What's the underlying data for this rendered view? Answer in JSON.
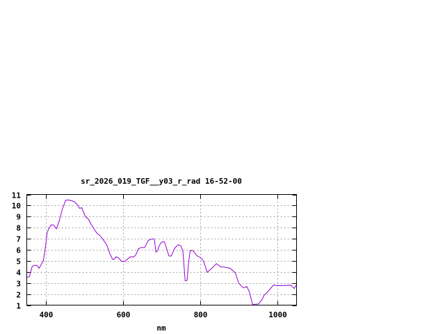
{
  "chart_data": {
    "type": "line",
    "title": "sr_2026_019_TGF__y03_r_rad 16-52-00",
    "xlabel": "nm",
    "ylabel": "",
    "xlim": [
      350,
      1050
    ],
    "ylim": [
      1,
      11
    ],
    "xticks": [
      400,
      600,
      800,
      1000
    ],
    "yticks": [
      1,
      2,
      3,
      4,
      5,
      6,
      7,
      8,
      9,
      10,
      11
    ],
    "grid": true,
    "series": [
      {
        "color": "#9400d3",
        "x": [
          350,
          357,
          364,
          370,
          376,
          382,
          387,
          393,
          397,
          403,
          407,
          413,
          419,
          427,
          435,
          442,
          451,
          460,
          469,
          475,
          481,
          487,
          493,
          496,
          502,
          510,
          517,
          526,
          532,
          541,
          550,
          558,
          565,
          572,
          576,
          582,
          588,
          596,
          605,
          614,
          620,
          626,
          632,
          640,
          647,
          656,
          665,
          671,
          677,
          681,
          685,
          689,
          694,
          700,
          707,
          713,
          719,
          725,
          734,
          743,
          750,
          755,
          761,
          766,
          770,
          774,
          782,
          791,
          803,
          809,
          818,
          830,
          842,
          854,
          863,
          878,
          891,
          900,
          912,
          921,
          927,
          936,
          951,
          960,
          966,
          975,
          990,
          999,
          1020,
          1035,
          1044,
          1049
        ],
        "y": [
          3.5,
          3.6,
          4.5,
          4.6,
          4.6,
          4.33,
          4.65,
          5.0,
          5.9,
          7.56,
          7.9,
          8.25,
          8.25,
          7.9,
          8.7,
          9.65,
          10.5,
          10.5,
          10.4,
          10.3,
          10.1,
          9.75,
          9.8,
          9.5,
          9.0,
          8.77,
          8.3,
          7.8,
          7.5,
          7.25,
          6.83,
          6.4,
          5.7,
          5.17,
          5.12,
          5.38,
          5.27,
          4.96,
          4.96,
          5.23,
          5.38,
          5.35,
          5.48,
          6.1,
          6.2,
          6.2,
          6.83,
          6.94,
          7.0,
          6.94,
          5.8,
          5.9,
          6.4,
          6.7,
          6.73,
          6.1,
          5.44,
          5.44,
          6.15,
          6.46,
          6.35,
          5.9,
          3.2,
          3.23,
          4.85,
          5.94,
          5.9,
          5.48,
          5.23,
          4.96,
          3.96,
          4.33,
          4.75,
          4.44,
          4.44,
          4.33,
          3.92,
          2.98,
          2.56,
          2.67,
          2.25,
          1.06,
          1.1,
          1.46,
          1.9,
          2.19,
          2.81,
          2.77,
          2.77,
          2.81,
          2.5,
          2.81
        ]
      }
    ]
  }
}
